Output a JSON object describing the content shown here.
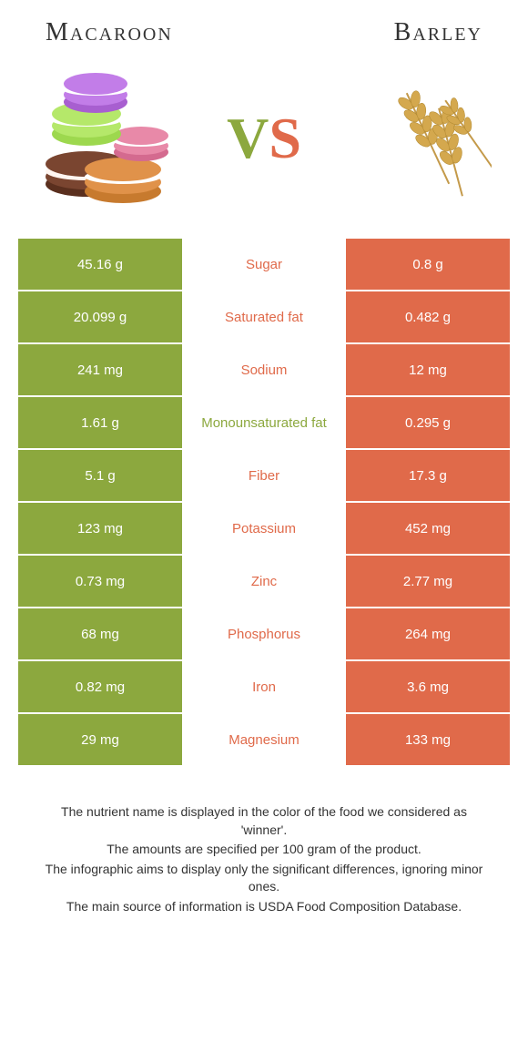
{
  "header": {
    "left_title": "Macaroon",
    "right_title": "Barley",
    "vs_v": "V",
    "vs_s": "S"
  },
  "colors": {
    "left": "#8ca83e",
    "right": "#e06a4a",
    "background": "#ffffff",
    "text": "#333333"
  },
  "table": {
    "rows": [
      {
        "left": "45.16 g",
        "mid": "Sugar",
        "right": "0.8 g",
        "winner": "left"
      },
      {
        "left": "20.099 g",
        "mid": "Saturated fat",
        "right": "0.482 g",
        "winner": "left"
      },
      {
        "left": "241 mg",
        "mid": "Sodium",
        "right": "12 mg",
        "winner": "left"
      },
      {
        "left": "1.61 g",
        "mid": "Monounsaturated fat",
        "right": "0.295 g",
        "winner": "right"
      },
      {
        "left": "5.1 g",
        "mid": "Fiber",
        "right": "17.3 g",
        "winner": "left"
      },
      {
        "left": "123 mg",
        "mid": "Potassium",
        "right": "452 mg",
        "winner": "left"
      },
      {
        "left": "0.73 mg",
        "mid": "Zinc",
        "right": "2.77 mg",
        "winner": "left"
      },
      {
        "left": "68 mg",
        "mid": "Phosphorus",
        "right": "264 mg",
        "winner": "left"
      },
      {
        "left": "0.82 mg",
        "mid": "Iron",
        "right": "3.6 mg",
        "winner": "left"
      },
      {
        "left": "29 mg",
        "mid": "Magnesium",
        "right": "133 mg",
        "winner": "left"
      }
    ]
  },
  "footnotes": [
    "The nutrient name is displayed in the color of the food we considered as 'winner'.",
    "The amounts are specified per 100 gram of the product.",
    "The infographic aims to display only the significant differences, ignoring minor ones.",
    "The main source of information is USDA Food Composition Database."
  ]
}
